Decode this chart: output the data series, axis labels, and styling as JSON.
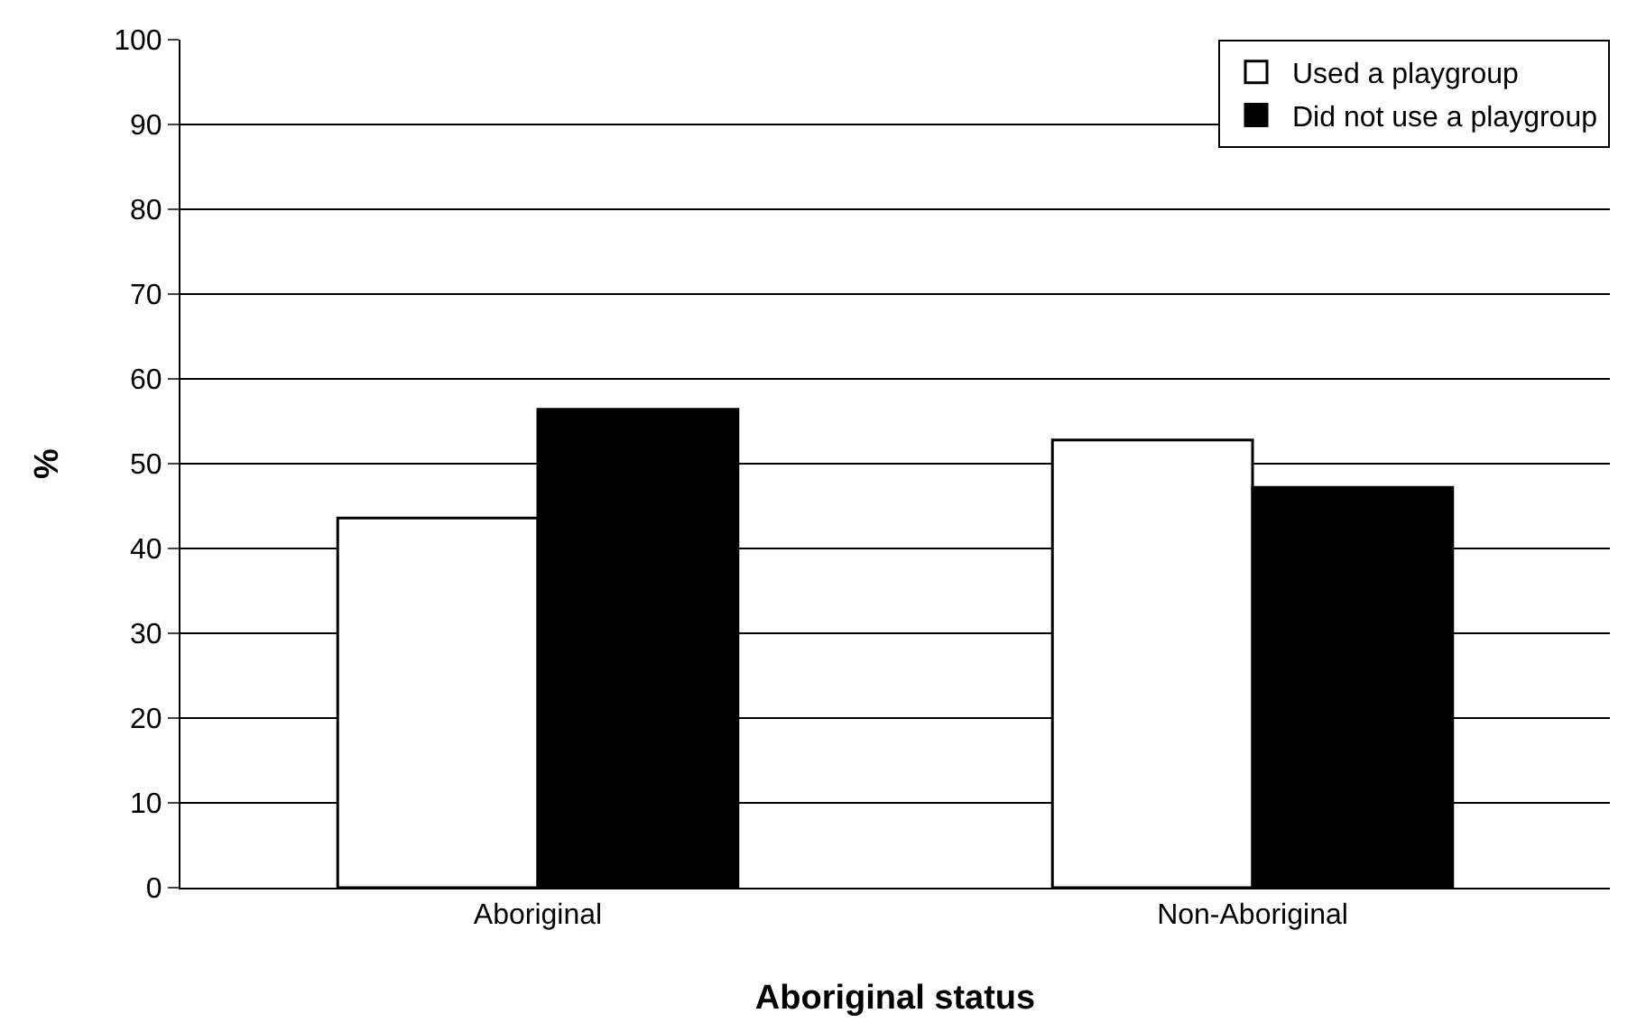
{
  "chart_data": {
    "type": "bar",
    "xlabel": "Aboriginal status",
    "ylabel": "%",
    "categories": [
      "Aboriginal",
      "Non-Aboriginal"
    ],
    "series": [
      {
        "name": "Used a playgroup",
        "color": "#ffffff",
        "values": [
          43.6,
          52.8
        ]
      },
      {
        "name": "Did not use a playgroup",
        "color": "#000000",
        "values": [
          56.4,
          47.2
        ]
      }
    ],
    "ylim": [
      0,
      100
    ],
    "yticks": [
      0,
      10,
      20,
      30,
      40,
      50,
      60,
      70,
      80,
      90,
      100
    ],
    "grid": "y",
    "legend": "top right"
  }
}
